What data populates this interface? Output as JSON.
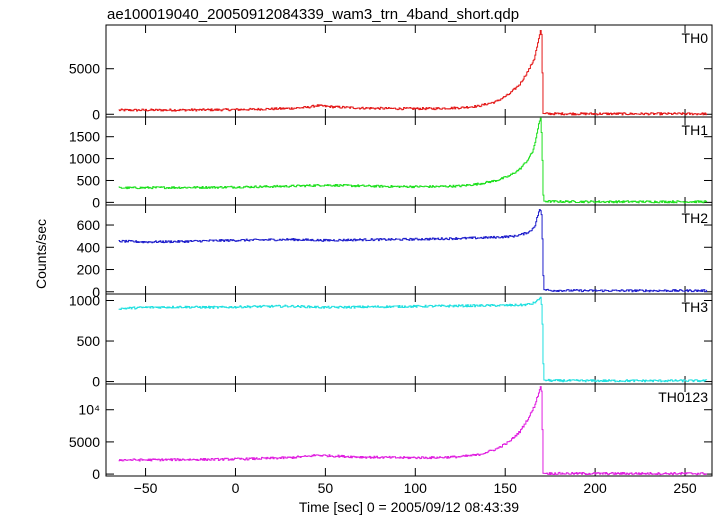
{
  "title": "ae100019040_20050912084339_wam3_trn_4band_short.qdp",
  "chart_data": {
    "type": "line",
    "title": "ae100019040_20050912084339_wam3_trn_4band_short.qdp",
    "xlabel": "Time [sec] 0 = 2005/09/12 08:43:39",
    "ylabel": "Counts/sec",
    "xlim": [
      -72,
      265
    ],
    "x_ticks": [
      -50,
      0,
      50,
      100,
      150,
      200,
      250
    ],
    "x_tick_labels": [
      "−50",
      "0",
      "50",
      "100",
      "150",
      "200",
      "250"
    ],
    "grid": false,
    "panels": [
      {
        "label": "TH0",
        "color": "#e41a1a",
        "ylim": [
          -300,
          9800
        ],
        "y_ticks": [
          0,
          5000
        ],
        "y_tick_labels": [
          "0",
          "5000"
        ],
        "x": [
          -65,
          -50,
          -30,
          -10,
          10,
          30,
          40,
          45,
          55,
          70,
          90,
          110,
          125,
          135,
          145,
          152,
          158,
          163,
          166,
          168,
          169.5,
          170.2,
          170.6,
          171,
          175,
          200,
          230,
          262
        ],
        "values": [
          450,
          460,
          470,
          490,
          540,
          640,
          760,
          950,
          800,
          680,
          620,
          620,
          720,
          900,
          1400,
          2200,
          3300,
          4900,
          6100,
          7800,
          9200,
          8600,
          3200,
          80,
          60,
          50,
          50,
          50
        ]
      },
      {
        "label": "TH1",
        "color": "#1fe01f",
        "ylim": [
          -60,
          1950
        ],
        "y_ticks": [
          0,
          500,
          1000,
          1500
        ],
        "y_tick_labels": [
          "0",
          "500",
          "1000",
          "1500"
        ],
        "x": [
          -65,
          -50,
          -30,
          -10,
          10,
          30,
          50,
          70,
          90,
          110,
          125,
          135,
          145,
          152,
          158,
          162,
          165,
          167,
          168.5,
          169.5,
          170.3,
          170.8,
          171.2,
          175,
          200,
          230,
          262
        ],
        "values": [
          330,
          335,
          340,
          345,
          355,
          370,
          395,
          375,
          360,
          360,
          375,
          420,
          500,
          600,
          760,
          950,
          1150,
          1450,
          1800,
          1920,
          1400,
          300,
          30,
          20,
          15,
          15,
          15
        ]
      },
      {
        "label": "TH2",
        "color": "#2020cc",
        "ylim": [
          -20,
          780
        ],
        "y_ticks": [
          0,
          200,
          400,
          600
        ],
        "y_tick_labels": [
          "0",
          "200",
          "400",
          "600"
        ],
        "x": [
          -65,
          -50,
          -30,
          -10,
          10,
          30,
          50,
          70,
          90,
          110,
          130,
          145,
          155,
          160,
          164,
          166.5,
          168,
          169.2,
          170.2,
          170.8,
          171.2,
          175,
          200,
          230,
          262
        ],
        "values": [
          455,
          448,
          452,
          460,
          465,
          470,
          462,
          468,
          470,
          475,
          482,
          490,
          500,
          520,
          545,
          600,
          690,
          750,
          680,
          270,
          20,
          12,
          10,
          10,
          10
        ]
      },
      {
        "label": "TH3",
        "color": "#20e0e0",
        "ylim": [
          -30,
          1080
        ],
        "y_ticks": [
          0,
          500,
          1000
        ],
        "y_tick_labels": [
          "0",
          "500",
          "1000"
        ],
        "x": [
          -65,
          -50,
          -30,
          -10,
          10,
          30,
          50,
          70,
          90,
          110,
          130,
          150,
          160,
          165,
          168,
          169.5,
          170.3,
          170.8,
          171.2,
          175,
          200,
          230,
          262
        ],
        "values": [
          900,
          915,
          920,
          915,
          925,
          930,
          915,
          920,
          925,
          930,
          935,
          940,
          945,
          960,
          1000,
          1040,
          900,
          420,
          20,
          12,
          10,
          10,
          10
        ]
      },
      {
        "label": "TH0123",
        "color": "#e020e0",
        "ylim": [
          -300,
          14000
        ],
        "y_ticks": [
          0,
          5000,
          10000
        ],
        "y_tick_labels": [
          "0",
          "5000",
          "10⁴"
        ],
        "x": [
          -65,
          -50,
          -30,
          -10,
          10,
          30,
          40,
          45,
          55,
          70,
          90,
          110,
          125,
          135,
          145,
          152,
          158,
          163,
          166,
          168,
          169.5,
          170.2,
          170.6,
          171,
          175,
          200,
          230,
          262
        ],
        "values": [
          2200,
          2200,
          2250,
          2280,
          2380,
          2550,
          2750,
          2950,
          2800,
          2650,
          2550,
          2550,
          2700,
          3000,
          3900,
          5000,
          6600,
          8800,
          10500,
          12200,
          13600,
          12600,
          5000,
          120,
          90,
          80,
          80,
          80
        ]
      }
    ]
  }
}
